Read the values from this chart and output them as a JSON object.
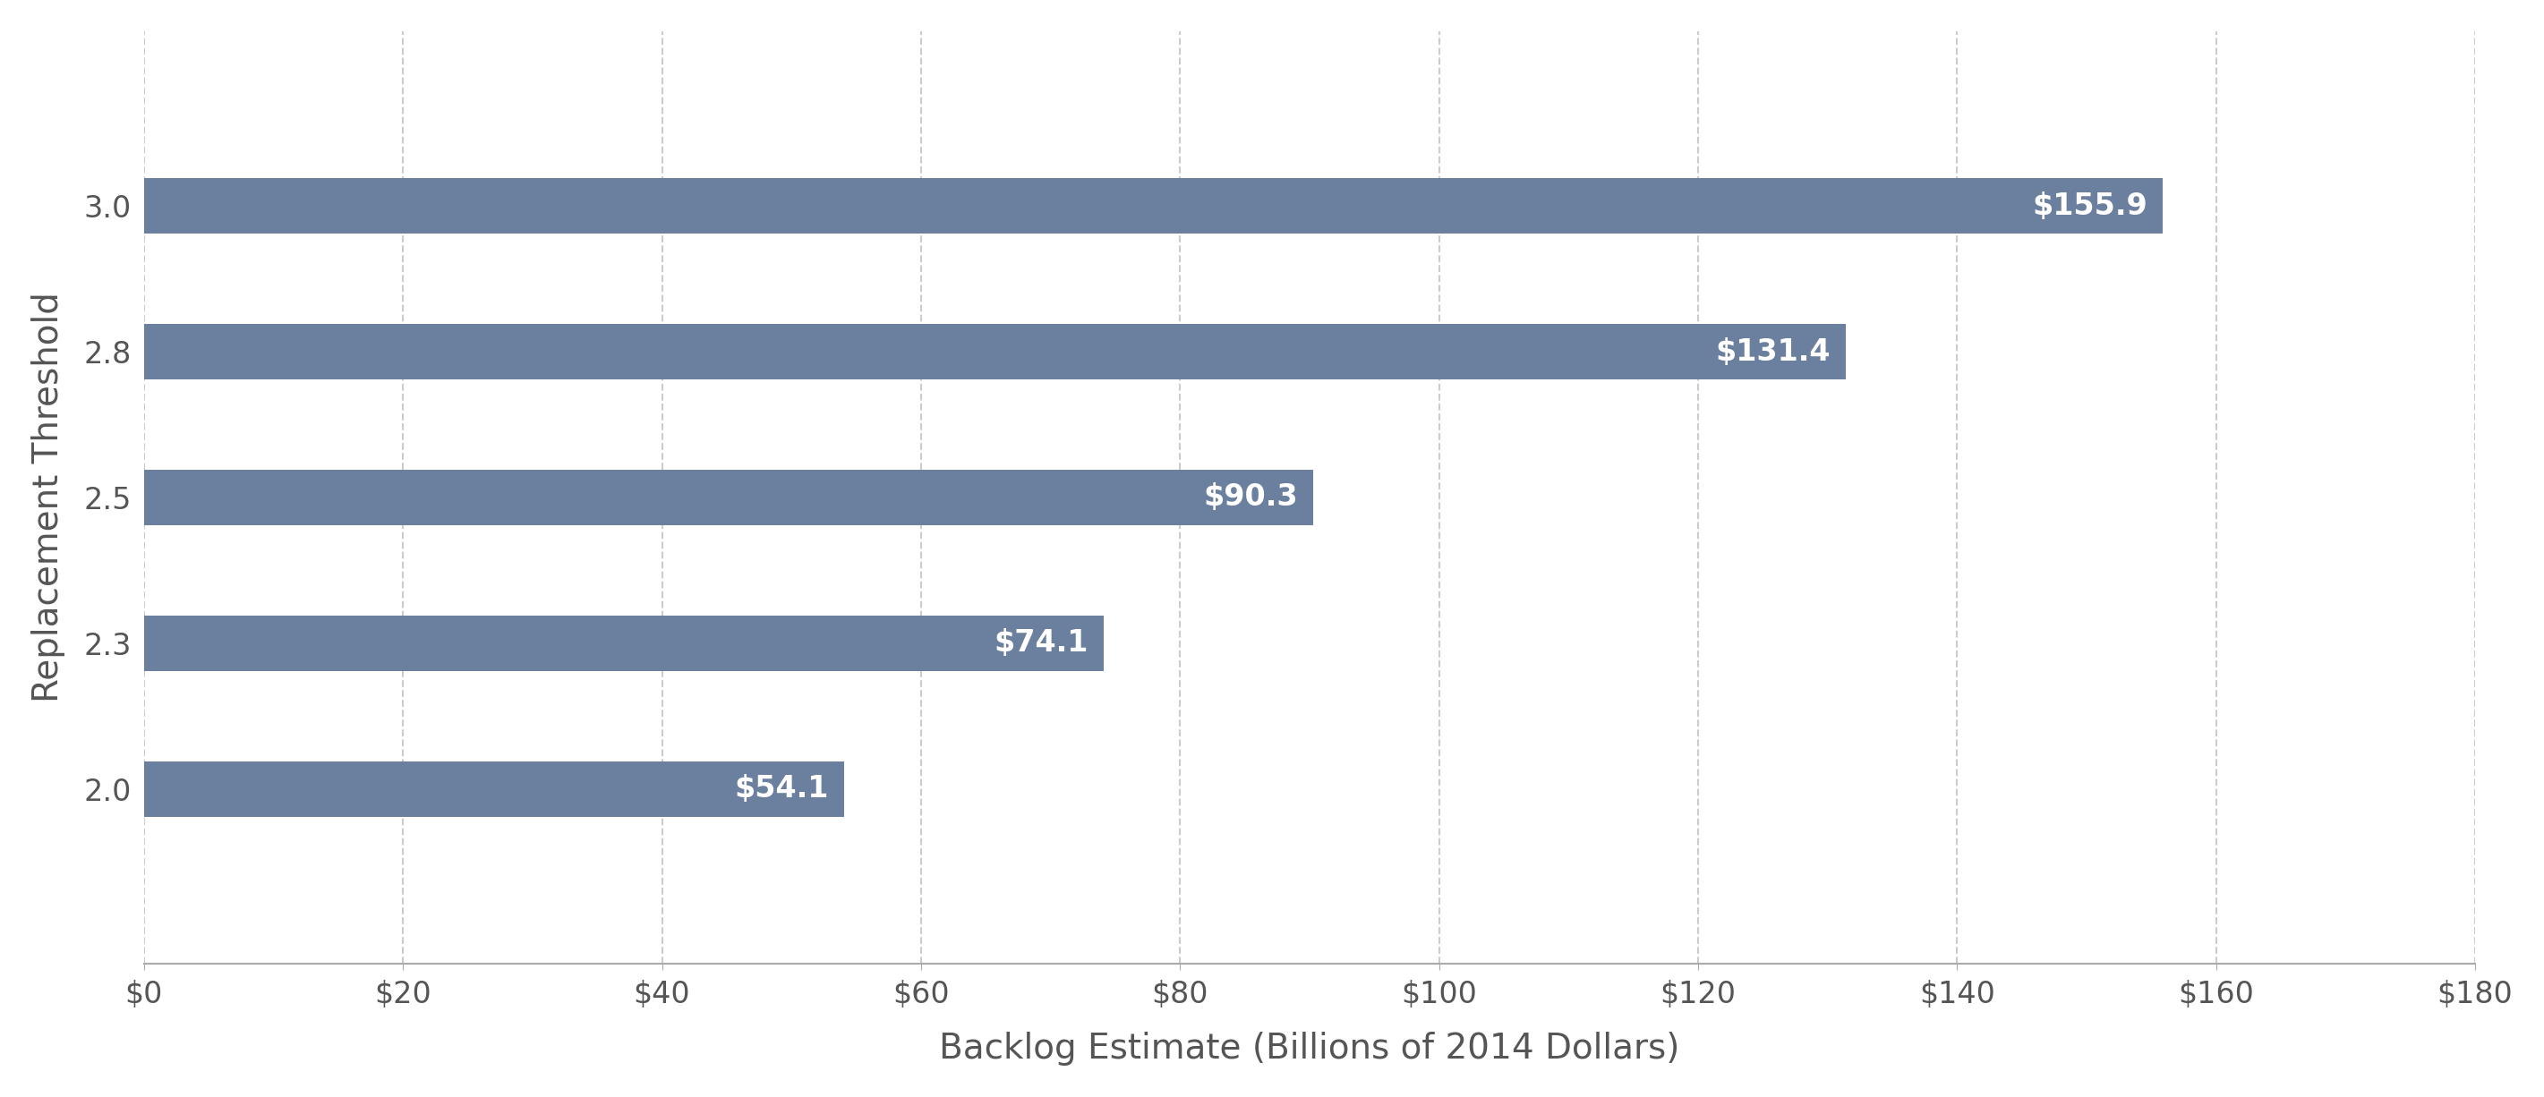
{
  "categories": [
    "3.0",
    "2.8",
    "2.5",
    "2.3",
    "2.0"
  ],
  "values": [
    155.9,
    131.4,
    90.3,
    74.1,
    54.1
  ],
  "labels": [
    "$155.9",
    "$131.4",
    "$90.3",
    "$74.1",
    "$54.1"
  ],
  "bar_color": "#6b7f9e",
  "background_color": "#ffffff",
  "xlabel": "Backlog Estimate (Billions of 2014 Dollars)",
  "ylabel": "Replacement Threshold",
  "xlim": [
    0,
    180
  ],
  "xticks": [
    0,
    20,
    40,
    60,
    80,
    100,
    120,
    140,
    160,
    180
  ],
  "xtick_labels": [
    "$0",
    "$20",
    "$40",
    "$60",
    "$80",
    "$100",
    "$120",
    "$140",
    "$160",
    "$180"
  ],
  "bar_height": 0.38,
  "label_fontsize": 24,
  "axis_label_fontsize": 28,
  "tick_fontsize": 24,
  "label_color": "#ffffff",
  "grid_color": "#cccccc",
  "spine_color": "#aaaaaa",
  "ytick_color": "#555555",
  "xtick_color": "#555555"
}
